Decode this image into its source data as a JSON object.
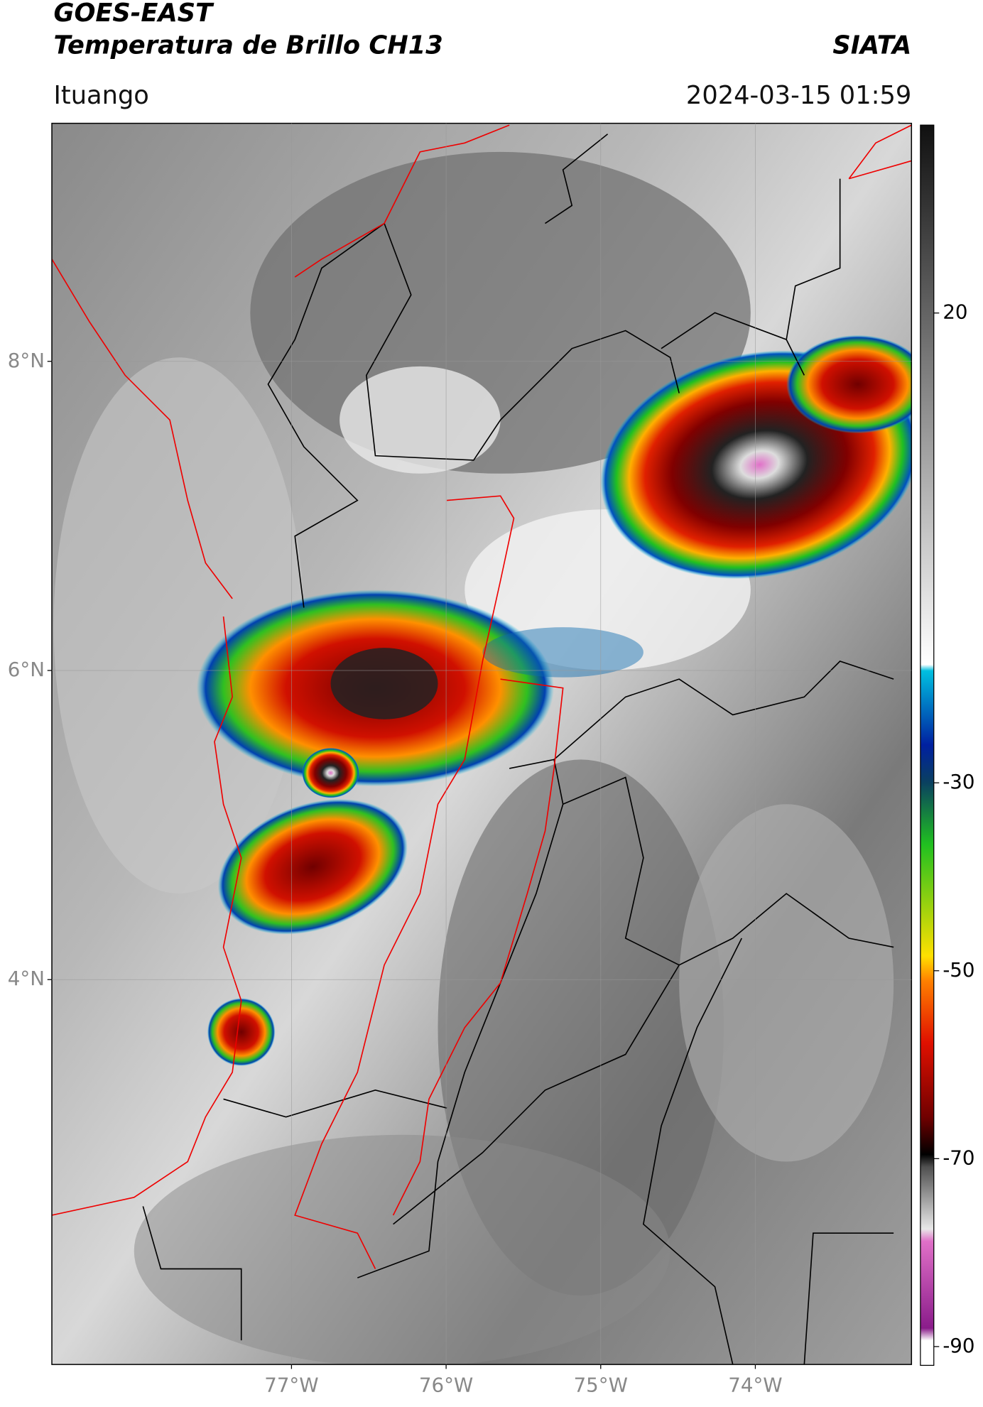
{
  "header": {
    "title": "GOES-EAST",
    "subtitle": "Temperatura de Brillo CH13",
    "source": "SIATA",
    "location": "Ituango",
    "datetime": "2024-03-15 01:59"
  },
  "map": {
    "xlim": [
      -78.55,
      -72.99
    ],
    "ylim": [
      1.51,
      9.54
    ],
    "yticks": [
      {
        "value": 8,
        "label": "8°N"
      },
      {
        "value": 6,
        "label": "6°N"
      },
      {
        "value": 4,
        "label": "4°N"
      }
    ],
    "xticks": [
      {
        "value": -77,
        "label": "77°W"
      },
      {
        "value": -76,
        "label": "76°W"
      },
      {
        "value": -75,
        "label": "75°W"
      },
      {
        "value": -74,
        "label": "74°W"
      }
    ]
  },
  "colorbar": {
    "lim": [
      -92,
      40
    ],
    "ticks": [
      20,
      -30,
      -50,
      -70,
      -90
    ]
  }
}
